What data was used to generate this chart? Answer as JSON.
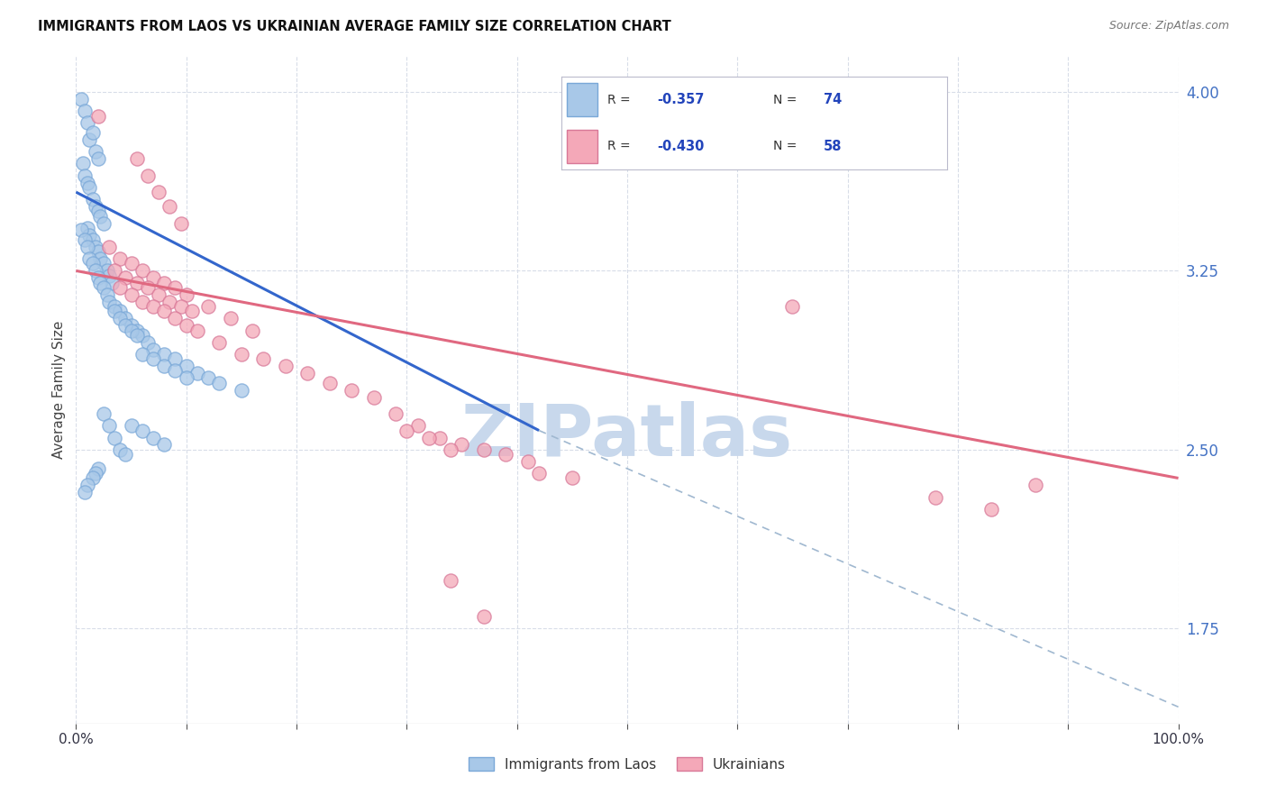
{
  "title": "IMMIGRANTS FROM LAOS VS UKRAINIAN AVERAGE FAMILY SIZE CORRELATION CHART",
  "source": "Source: ZipAtlas.com",
  "ylabel": "Average Family Size",
  "yticks": [
    1.75,
    2.5,
    3.25,
    4.0
  ],
  "ytick_color": "#4472c4",
  "xmin": 0.0,
  "xmax": 1.0,
  "ymin": 1.35,
  "ymax": 4.15,
  "legend_color": "#2244bb",
  "laos_color": "#a8c8e8",
  "laos_edge": "#7aa8d8",
  "ukrainian_color": "#f4a8b8",
  "ukrainian_edge": "#d87898",
  "laos_scatter": [
    [
      0.005,
      3.97
    ],
    [
      0.008,
      3.92
    ],
    [
      0.01,
      3.87
    ],
    [
      0.012,
      3.8
    ],
    [
      0.015,
      3.83
    ],
    [
      0.018,
      3.75
    ],
    [
      0.02,
      3.72
    ],
    [
      0.006,
      3.7
    ],
    [
      0.008,
      3.65
    ],
    [
      0.01,
      3.62
    ],
    [
      0.012,
      3.6
    ],
    [
      0.015,
      3.55
    ],
    [
      0.018,
      3.52
    ],
    [
      0.02,
      3.5
    ],
    [
      0.022,
      3.48
    ],
    [
      0.025,
      3.45
    ],
    [
      0.01,
      3.43
    ],
    [
      0.012,
      3.4
    ],
    [
      0.015,
      3.38
    ],
    [
      0.018,
      3.35
    ],
    [
      0.02,
      3.33
    ],
    [
      0.022,
      3.3
    ],
    [
      0.025,
      3.28
    ],
    [
      0.028,
      3.25
    ],
    [
      0.03,
      3.23
    ],
    [
      0.032,
      3.2
    ],
    [
      0.005,
      3.42
    ],
    [
      0.008,
      3.38
    ],
    [
      0.01,
      3.35
    ],
    [
      0.012,
      3.3
    ],
    [
      0.015,
      3.28
    ],
    [
      0.018,
      3.25
    ],
    [
      0.02,
      3.22
    ],
    [
      0.022,
      3.2
    ],
    [
      0.025,
      3.18
    ],
    [
      0.028,
      3.15
    ],
    [
      0.03,
      3.12
    ],
    [
      0.035,
      3.1
    ],
    [
      0.04,
      3.08
    ],
    [
      0.045,
      3.05
    ],
    [
      0.05,
      3.02
    ],
    [
      0.055,
      3.0
    ],
    [
      0.06,
      2.98
    ],
    [
      0.065,
      2.95
    ],
    [
      0.07,
      2.92
    ],
    [
      0.08,
      2.9
    ],
    [
      0.09,
      2.88
    ],
    [
      0.1,
      2.85
    ],
    [
      0.11,
      2.82
    ],
    [
      0.12,
      2.8
    ],
    [
      0.13,
      2.78
    ],
    [
      0.15,
      2.75
    ],
    [
      0.06,
      2.9
    ],
    [
      0.07,
      2.88
    ],
    [
      0.08,
      2.85
    ],
    [
      0.09,
      2.83
    ],
    [
      0.1,
      2.8
    ],
    [
      0.035,
      3.08
    ],
    [
      0.04,
      3.05
    ],
    [
      0.045,
      3.02
    ],
    [
      0.05,
      3.0
    ],
    [
      0.055,
      2.98
    ],
    [
      0.025,
      2.65
    ],
    [
      0.03,
      2.6
    ],
    [
      0.035,
      2.55
    ],
    [
      0.04,
      2.5
    ],
    [
      0.045,
      2.48
    ],
    [
      0.02,
      2.42
    ],
    [
      0.018,
      2.4
    ],
    [
      0.015,
      2.38
    ],
    [
      0.01,
      2.35
    ],
    [
      0.008,
      2.32
    ],
    [
      0.05,
      2.6
    ],
    [
      0.06,
      2.58
    ],
    [
      0.07,
      2.55
    ],
    [
      0.08,
      2.52
    ]
  ],
  "ukrainian_scatter": [
    [
      0.02,
      3.9
    ],
    [
      0.055,
      3.72
    ],
    [
      0.065,
      3.65
    ],
    [
      0.075,
      3.58
    ],
    [
      0.085,
      3.52
    ],
    [
      0.095,
      3.45
    ],
    [
      0.03,
      3.35
    ],
    [
      0.04,
      3.3
    ],
    [
      0.05,
      3.28
    ],
    [
      0.06,
      3.25
    ],
    [
      0.07,
      3.22
    ],
    [
      0.08,
      3.2
    ],
    [
      0.09,
      3.18
    ],
    [
      0.1,
      3.15
    ],
    [
      0.035,
      3.25
    ],
    [
      0.045,
      3.22
    ],
    [
      0.055,
      3.2
    ],
    [
      0.065,
      3.18
    ],
    [
      0.075,
      3.15
    ],
    [
      0.085,
      3.12
    ],
    [
      0.095,
      3.1
    ],
    [
      0.105,
      3.08
    ],
    [
      0.04,
      3.18
    ],
    [
      0.05,
      3.15
    ],
    [
      0.06,
      3.12
    ],
    [
      0.07,
      3.1
    ],
    [
      0.08,
      3.08
    ],
    [
      0.09,
      3.05
    ],
    [
      0.1,
      3.02
    ],
    [
      0.11,
      3.0
    ],
    [
      0.13,
      2.95
    ],
    [
      0.15,
      2.9
    ],
    [
      0.17,
      2.88
    ],
    [
      0.19,
      2.85
    ],
    [
      0.21,
      2.82
    ],
    [
      0.23,
      2.78
    ],
    [
      0.25,
      2.75
    ],
    [
      0.27,
      2.72
    ],
    [
      0.12,
      3.1
    ],
    [
      0.14,
      3.05
    ],
    [
      0.16,
      3.0
    ],
    [
      0.29,
      2.65
    ],
    [
      0.31,
      2.6
    ],
    [
      0.33,
      2.55
    ],
    [
      0.35,
      2.52
    ],
    [
      0.37,
      2.5
    ],
    [
      0.39,
      2.48
    ],
    [
      0.41,
      2.45
    ],
    [
      0.3,
      2.58
    ],
    [
      0.32,
      2.55
    ],
    [
      0.34,
      2.5
    ],
    [
      0.65,
      3.1
    ],
    [
      0.78,
      2.3
    ],
    [
      0.83,
      2.25
    ],
    [
      0.87,
      2.35
    ],
    [
      0.34,
      1.95
    ],
    [
      0.37,
      1.8
    ],
    [
      0.42,
      2.4
    ],
    [
      0.45,
      2.38
    ]
  ],
  "laos_line_x": [
    0.0,
    0.42
  ],
  "laos_line_y": [
    3.58,
    2.58
  ],
  "ukrainian_line_x": [
    0.0,
    1.0
  ],
  "ukrainian_line_y": [
    3.25,
    2.38
  ],
  "dashed_line_x": [
    0.42,
    1.0
  ],
  "dashed_line_y": [
    2.58,
    1.42
  ],
  "watermark": "ZIPatlas",
  "watermark_color": "#c8d8ec",
  "grid_color": "#d8dde8",
  "bottom_legend_labels": [
    "Immigrants from Laos",
    "Ukrainians"
  ]
}
